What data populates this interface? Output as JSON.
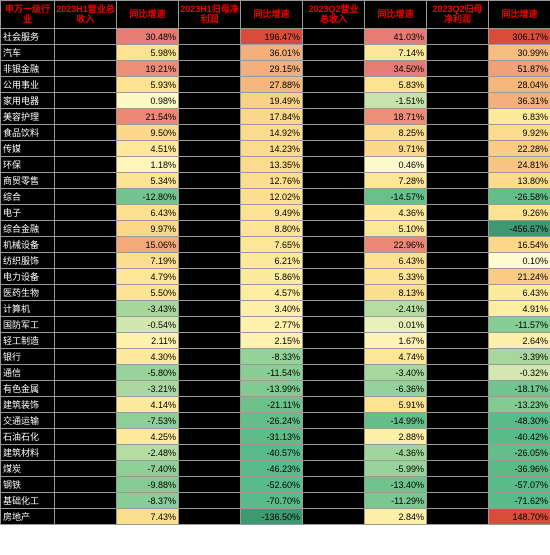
{
  "table": {
    "type": "table",
    "text_color_header": "#e00000",
    "text_color_body": "#000",
    "text_color_dark": "#fff",
    "border_color": "#999",
    "header_bg": "#000",
    "dark_bg": "#000",
    "fontsize_header": 9,
    "fontsize_body": 9,
    "heat_scale": {
      "min_color": "#57bb8a",
      "mid_color": "#ffeb84",
      "max_color": "#e67c73",
      "neg_strong": "#3d9970",
      "pos_strong": "#d94c3a"
    },
    "columns": [
      "申万一级行业",
      "2023H1营业总收入",
      "同比增速",
      "2023H1归母净利润",
      "同比增速",
      "2023Q2营业总收入",
      "同比增速",
      "2023Q2归母净利润",
      "同比增速"
    ],
    "rows": [
      {
        "label": "社会服务",
        "v": [
          "",
          "30.48%",
          "",
          "196.47%",
          "",
          "41.03%",
          "",
          "306.17%"
        ],
        "c": [
          "",
          "#e67c73",
          "",
          "#d94c3a",
          "",
          "#e67c73",
          "",
          "#d94c3a"
        ]
      },
      {
        "label": "汽车",
        "v": [
          "",
          "5.98%",
          "",
          "36.01%",
          "",
          "7.14%",
          "",
          "30.99%"
        ],
        "c": [
          "",
          "#fde291",
          "",
          "#f4b07a",
          "",
          "#fde899",
          "",
          "#f7bd80"
        ]
      },
      {
        "label": "非银金融",
        "v": [
          "",
          "19.21%",
          "",
          "29.15%",
          "",
          "34.50%",
          "",
          "51.87%"
        ],
        "c": [
          "",
          "#ed8f76",
          "",
          "#f4b07a",
          "",
          "#e67c73",
          "",
          "#efa178"
        ]
      },
      {
        "label": "公用事业",
        "v": [
          "",
          "5.93%",
          "",
          "27.88%",
          "",
          "5.83%",
          "",
          "28.04%"
        ],
        "c": [
          "",
          "#fde291",
          "",
          "#f6b77d",
          "",
          "#fde291",
          "",
          "#f6b77d"
        ]
      },
      {
        "label": "家用电器",
        "v": [
          "",
          "0.98%",
          "",
          "19.49%",
          "",
          "-1.51%",
          "",
          "36.31%"
        ],
        "c": [
          "",
          "#fef8c4",
          "",
          "#fad286",
          "",
          "#c7e3ab",
          "",
          "#f4b07a"
        ]
      },
      {
        "label": "美容护理",
        "v": [
          "",
          "21.54%",
          "",
          "17.84%",
          "",
          "18.71%",
          "",
          "6.83%"
        ],
        "c": [
          "",
          "#eb8975",
          "",
          "#fbd789",
          "",
          "#ed8f76",
          "",
          "#fdea9a"
        ]
      },
      {
        "label": "食品饮料",
        "v": [
          "",
          "9.50%",
          "",
          "14.92%",
          "",
          "8.25%",
          "",
          "9.92%"
        ],
        "c": [
          "",
          "#fcd88a",
          "",
          "#fbdc8c",
          "",
          "#fcdd8d",
          "",
          "#fbdc8c"
        ]
      },
      {
        "label": "传媒",
        "v": [
          "",
          "4.51%",
          "",
          "14.23%",
          "",
          "9.71%",
          "",
          "22.28%"
        ],
        "c": [
          "",
          "#fee89b",
          "",
          "#fbdc8c",
          "",
          "#fcd88a",
          "",
          "#f9cb84"
        ]
      },
      {
        "label": "环保",
        "v": [
          "",
          "1.18%",
          "",
          "13.35%",
          "",
          "0.46%",
          "",
          "24.81%"
        ],
        "c": [
          "",
          "#fef5bb",
          "",
          "#fbdc8c",
          "",
          "#fef9c8",
          "",
          "#f8c682"
        ]
      },
      {
        "label": "商贸零售",
        "v": [
          "",
          "5.34%",
          "",
          "12.76%",
          "",
          "7.28%",
          "",
          "13.80%"
        ],
        "c": [
          "",
          "#fde494",
          "",
          "#fbdf8e",
          "",
          "#fde797",
          "",
          "#fbdc8c"
        ]
      },
      {
        "label": "综合",
        "v": [
          "",
          "-12.80%",
          "",
          "12.02%",
          "",
          "-14.57%",
          "",
          "-26.58%"
        ],
        "c": [
          "",
          "#74c48f",
          "",
          "#fce090",
          "",
          "#68c08b",
          "",
          "#63be89"
        ]
      },
      {
        "label": "电子",
        "v": [
          "",
          "6.43%",
          "",
          "9.49%",
          "",
          "4.36%",
          "",
          "9.26%"
        ],
        "c": [
          "",
          "#fde191",
          "",
          "#fce394",
          "",
          "#fee99c",
          "",
          "#fce394"
        ]
      },
      {
        "label": "综合金融",
        "v": [
          "",
          "9.97%",
          "",
          "8.80%",
          "",
          "5.10%",
          "",
          "-456.67%"
        ],
        "c": [
          "",
          "#fcd789",
          "",
          "#fce596",
          "",
          "#fde697",
          "",
          "#3d9970"
        ]
      },
      {
        "label": "机械设备",
        "v": [
          "",
          "15.06%",
          "",
          "7.65%",
          "",
          "22.96%",
          "",
          "16.54%"
        ],
        "c": [
          "",
          "#f3a979",
          "",
          "#fce797",
          "",
          "#eb8975",
          "",
          "#fbd789"
        ]
      },
      {
        "label": "纺织服饰",
        "v": [
          "",
          "7.19%",
          "",
          "6.21%",
          "",
          "6.43%",
          "",
          "0.10%"
        ],
        "c": [
          "",
          "#fcde8f",
          "",
          "#fdea9b",
          "",
          "#fde191",
          "",
          "#fefbd0"
        ]
      },
      {
        "label": "电力设备",
        "v": [
          "",
          "4.79%",
          "",
          "5.86%",
          "",
          "5.33%",
          "",
          "21.24%"
        ],
        "c": [
          "",
          "#fde797",
          "",
          "#fdeb9d",
          "",
          "#fde494",
          "",
          "#f9cb84"
        ]
      },
      {
        "label": "医药生物",
        "v": [
          "",
          "5.50%",
          "",
          "4.57%",
          "",
          "8.13%",
          "",
          "6.43%"
        ],
        "c": [
          "",
          "#fde393",
          "",
          "#fdeda1",
          "",
          "#fcde8f",
          "",
          "#fdeb9c"
        ]
      },
      {
        "label": "计算机",
        "v": [
          "",
          "-3.43%",
          "",
          "3.40%",
          "",
          "-2.41%",
          "",
          "4.91%"
        ],
        "c": [
          "",
          "#a7d69d",
          "",
          "#feefa7",
          "",
          "#b5dca3",
          "",
          "#fdeda0"
        ]
      },
      {
        "label": "国防军工",
        "v": [
          "",
          "-0.54%",
          "",
          "2.77%",
          "",
          "0.01%",
          "",
          "-11.57%"
        ],
        "c": [
          "",
          "#d0e7af",
          "",
          "#fef1ab",
          "",
          "#e7f1b9",
          "",
          "#86cd95"
        ]
      },
      {
        "label": "轻工制造",
        "v": [
          "",
          "2.11%",
          "",
          "2.15%",
          "",
          "1.67%",
          "",
          "2.64%"
        ],
        "c": [
          "",
          "#fef1ab",
          "",
          "#fef2ae",
          "",
          "#fef3b2",
          "",
          "#fef0a9"
        ]
      },
      {
        "label": "银行",
        "v": [
          "",
          "4.30%",
          "",
          "-8.33%",
          "",
          "4.74%",
          "",
          "-3.39%"
        ],
        "c": [
          "",
          "#fee99c",
          "",
          "#94d299",
          "",
          "#fde797",
          "",
          "#a8d79e"
        ]
      },
      {
        "label": "通信",
        "v": [
          "",
          "-5.80%",
          "",
          "-11.54%",
          "",
          "-3.40%",
          "",
          "-0.32%"
        ],
        "c": [
          "",
          "#97d39a",
          "",
          "#88ce95",
          "",
          "#a8d79e",
          "",
          "#d3e8b0"
        ]
      },
      {
        "label": "有色金属",
        "v": [
          "",
          "-3.21%",
          "",
          "-13.99%",
          "",
          "-6.36%",
          "",
          "-18.17%"
        ],
        "c": [
          "",
          "#aad89f",
          "",
          "#80ca93",
          "",
          "#94d299",
          "",
          "#74c48f"
        ]
      },
      {
        "label": "建筑装饰",
        "v": [
          "",
          "4.14%",
          "",
          "-21.11%",
          "",
          "5.91%",
          "",
          "-13.23%"
        ],
        "c": [
          "",
          "#feea9d",
          "",
          "#6dc28c",
          "",
          "#fde291",
          "",
          "#82cb93"
        ]
      },
      {
        "label": "交通运输",
        "v": [
          "",
          "-7.53%",
          "",
          "-26.24%",
          "",
          "-14.99%",
          "",
          "-48.30%"
        ],
        "c": [
          "",
          "#8dcf97",
          "",
          "#63be89",
          "",
          "#66bf8a",
          "",
          "#57bb8a"
        ]
      },
      {
        "label": "石油石化",
        "v": [
          "",
          "4.25%",
          "",
          "-31.13%",
          "",
          "2.88%",
          "",
          "-40.42%"
        ],
        "c": [
          "",
          "#fee99c",
          "",
          "#5dbc87",
          "",
          "#feefa7",
          "",
          "#57bb8a"
        ]
      },
      {
        "label": "建筑材料",
        "v": [
          "",
          "-2.48%",
          "",
          "-40.57%",
          "",
          "-4.36%",
          "",
          "-26.05%"
        ],
        "c": [
          "",
          "#b5dca3",
          "",
          "#57bb8a",
          "",
          "#a1d59c",
          "",
          "#64be89"
        ]
      },
      {
        "label": "煤炭",
        "v": [
          "",
          "-7.40%",
          "",
          "-46.23%",
          "",
          "-5.99%",
          "",
          "-36.96%"
        ],
        "c": [
          "",
          "#8ecf97",
          "",
          "#57bb8a",
          "",
          "#97d39a",
          "",
          "#5abb86"
        ]
      },
      {
        "label": "钢铁",
        "v": [
          "",
          "-9.88%",
          "",
          "-52.60%",
          "",
          "-13.40%",
          "",
          "-57.07%"
        ],
        "c": [
          "",
          "#84cc94",
          "",
          "#57bb8a",
          "",
          "#70c38d",
          "",
          "#57bb8a"
        ]
      },
      {
        "label": "基础化工",
        "v": [
          "",
          "-8.37%",
          "",
          "-70.70%",
          "",
          "-11.29%",
          "",
          "-71.62%"
        ],
        "c": [
          "",
          "#89ce96",
          "",
          "#57bb8a",
          "",
          "#7ac791",
          "",
          "#57bb8a"
        ]
      },
      {
        "label": "房地产",
        "v": [
          "",
          "7.43%",
          "",
          "-136.50%",
          "",
          "2.84%",
          "",
          "148.70%"
        ],
        "c": [
          "",
          "#fcde8f",
          "",
          "#3d9970",
          "",
          "#feefa7",
          "",
          "#d94c3a"
        ]
      }
    ]
  }
}
